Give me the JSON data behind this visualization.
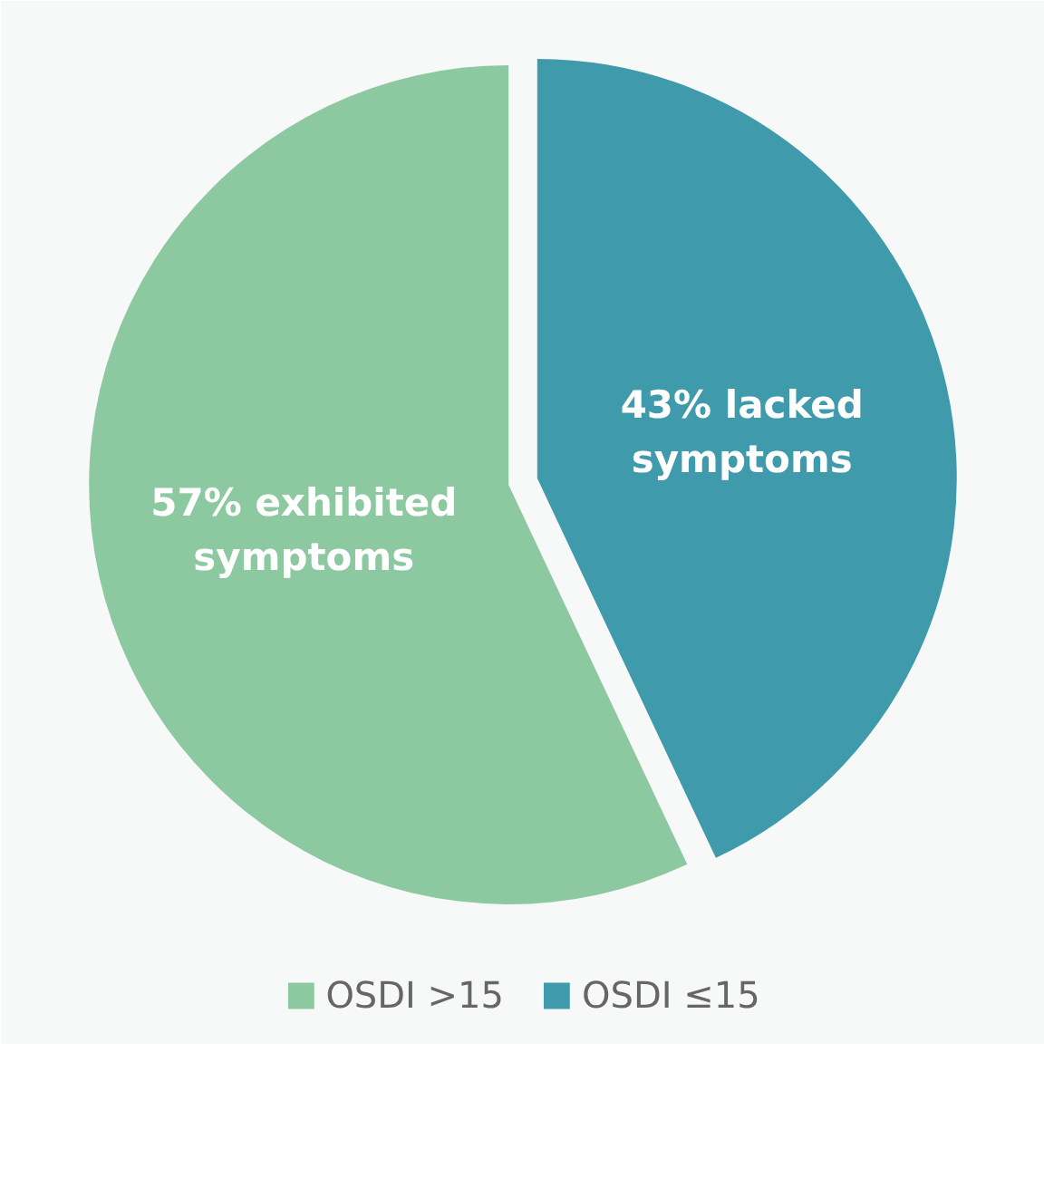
{
  "chart_data": {
    "type": "pie",
    "categories": [
      "OSDI >15",
      "OSDI ≤15"
    ],
    "values": [
      57,
      43
    ],
    "colors": [
      "#8cc9a0",
      "#3f9aab"
    ],
    "value_labels": [
      "57% exhibited symptoms",
      "43% lacked symptoms"
    ],
    "legend": "bottom"
  }
}
